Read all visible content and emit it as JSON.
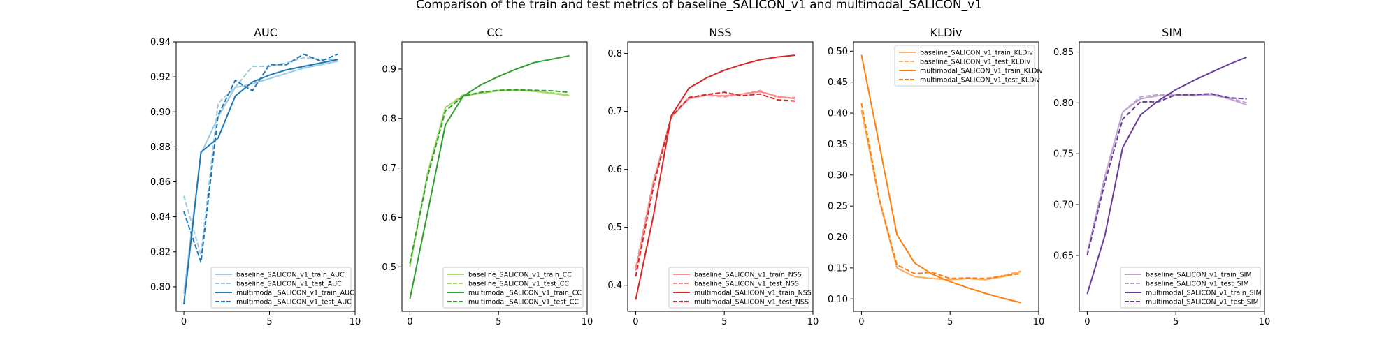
{
  "title": "Comparison of the train and test metrics of baseline_SALICON_v1 and multimodal_SALICON_v1",
  "chart_data": [
    {
      "type": "line",
      "title": "AUC",
      "xlim": [
        -0.45,
        10
      ],
      "ylim": [
        0.786,
        0.94
      ],
      "xticks": [
        0,
        5,
        10
      ],
      "yticks": [
        0.8,
        0.82,
        0.84,
        0.86,
        0.88,
        0.9,
        0.92,
        0.94
      ],
      "ytick_labels": [
        "0.80",
        "0.82",
        "0.84",
        "0.86",
        "0.88",
        "0.90",
        "0.92",
        "0.94"
      ],
      "legend_position": "lower right",
      "x": [
        0,
        1,
        2,
        3,
        4,
        5,
        6,
        7,
        8,
        9
      ],
      "series": [
        {
          "name": "baseline_SALICON_v1_train_AUC",
          "color": "#9ecae1",
          "dashed": false,
          "values": [
            0.796,
            0.876,
            0.897,
            0.914,
            0.916,
            0.919,
            0.922,
            0.925,
            0.927,
            0.929
          ]
        },
        {
          "name": "baseline_SALICON_v1_test_AUC",
          "color": "#9ecae1",
          "dashed": true,
          "values": [
            0.852,
            0.818,
            0.905,
            0.914,
            0.926,
            0.926,
            0.928,
            0.931,
            0.93,
            0.93
          ]
        },
        {
          "name": "multimodal_SALICON_v1_train_AUC",
          "color": "#1f77b4",
          "dashed": false,
          "values": [
            0.79,
            0.877,
            0.885,
            0.909,
            0.917,
            0.921,
            0.924,
            0.926,
            0.928,
            0.93
          ]
        },
        {
          "name": "multimodal_SALICON_v1_test_AUC",
          "color": "#1f77b4",
          "dashed": true,
          "values": [
            0.843,
            0.814,
            0.898,
            0.918,
            0.912,
            0.927,
            0.927,
            0.933,
            0.929,
            0.933
          ]
        }
      ]
    },
    {
      "type": "line",
      "title": "CC",
      "xlim": [
        -0.45,
        10
      ],
      "ylim": [
        0.41,
        0.955
      ],
      "xticks": [
        0,
        5,
        10
      ],
      "yticks": [
        0.5,
        0.6,
        0.7,
        0.8,
        0.9
      ],
      "ytick_labels": [
        "0.5",
        "0.6",
        "0.7",
        "0.8",
        "0.9"
      ],
      "legend_position": "lower right",
      "x": [
        0,
        1,
        2,
        3,
        4,
        5,
        6,
        7,
        8,
        9
      ],
      "series": [
        {
          "name": "baseline_SALICON_v1_train_CC",
          "color": "#a6d96a",
          "dashed": false,
          "values": [
            0.5,
            0.69,
            0.822,
            0.845,
            0.851,
            0.856,
            0.857,
            0.855,
            0.851,
            0.846
          ]
        },
        {
          "name": "baseline_SALICON_v1_test_CC",
          "color": "#a6d96a",
          "dashed": true,
          "values": [
            0.5,
            0.69,
            0.822,
            0.848,
            0.852,
            0.857,
            0.858,
            0.856,
            0.852,
            0.848
          ]
        },
        {
          "name": "multimodal_SALICON_v1_train_CC",
          "color": "#2ca02c",
          "dashed": false,
          "values": [
            0.435,
            0.61,
            0.787,
            0.845,
            0.868,
            0.885,
            0.9,
            0.913,
            0.92,
            0.927
          ]
        },
        {
          "name": "multimodal_SALICON_v1_test_CC",
          "color": "#2ca02c",
          "dashed": true,
          "values": [
            0.507,
            0.683,
            0.815,
            0.845,
            0.853,
            0.857,
            0.858,
            0.857,
            0.856,
            0.853
          ]
        }
      ]
    },
    {
      "type": "line",
      "title": "NSS",
      "xlim": [
        -0.45,
        10
      ],
      "ylim": [
        0.355,
        0.82
      ],
      "xticks": [
        0,
        5,
        10
      ],
      "yticks": [
        0.4,
        0.5,
        0.6,
        0.7,
        0.8
      ],
      "ytick_labels": [
        "0.4",
        "0.5",
        "0.6",
        "0.7",
        "0.8"
      ],
      "legend_position": "lower right",
      "x": [
        0,
        1,
        2,
        3,
        4,
        5,
        6,
        7,
        8,
        9
      ],
      "series": [
        {
          "name": "baseline_SALICON_v1_train_NSS",
          "color": "#fc8d8d",
          "dashed": false,
          "values": [
            0.425,
            0.578,
            0.69,
            0.722,
            0.728,
            0.727,
            0.73,
            0.734,
            0.726,
            0.722
          ]
        },
        {
          "name": "baseline_SALICON_v1_test_NSS",
          "color": "#fc8d8d",
          "dashed": true,
          "values": [
            0.43,
            0.58,
            0.69,
            0.724,
            0.728,
            0.725,
            0.73,
            0.736,
            0.724,
            0.724
          ]
        },
        {
          "name": "multimodal_SALICON_v1_train_NSS",
          "color": "#d62728",
          "dashed": false,
          "values": [
            0.375,
            0.52,
            0.692,
            0.74,
            0.758,
            0.771,
            0.781,
            0.789,
            0.794,
            0.797
          ]
        },
        {
          "name": "multimodal_SALICON_v1_test_NSS",
          "color": "#d62728",
          "dashed": true,
          "values": [
            0.415,
            0.57,
            0.69,
            0.724,
            0.729,
            0.733,
            0.727,
            0.73,
            0.72,
            0.718
          ]
        }
      ]
    },
    {
      "type": "line",
      "title": "KLDiv",
      "xlim": [
        -0.45,
        10
      ],
      "ylim": [
        0.08,
        0.515
      ],
      "xticks": [
        0,
        5,
        10
      ],
      "yticks": [
        0.1,
        0.15,
        0.2,
        0.25,
        0.3,
        0.35,
        0.4,
        0.45,
        0.5
      ],
      "ytick_labels": [
        "0.10",
        "0.15",
        "0.20",
        "0.25",
        "0.30",
        "0.35",
        "0.40",
        "0.45",
        "0.50"
      ],
      "legend_position": "upper right",
      "x": [
        0,
        1,
        2,
        3,
        4,
        5,
        6,
        7,
        8,
        9
      ],
      "series": [
        {
          "name": "baseline_SALICON_v1_train_KLDiv",
          "color": "#fdae61",
          "dashed": false,
          "values": [
            0.405,
            0.26,
            0.15,
            0.136,
            0.133,
            0.131,
            0.133,
            0.131,
            0.136,
            0.144
          ]
        },
        {
          "name": "baseline_SALICON_v1_test_KLDiv",
          "color": "#fdae61",
          "dashed": true,
          "values": [
            0.405,
            0.26,
            0.15,
            0.136,
            0.133,
            0.131,
            0.133,
            0.131,
            0.138,
            0.145
          ]
        },
        {
          "name": "multimodal_SALICON_v1_train_KLDiv",
          "color": "#ff7f0e",
          "dashed": false,
          "values": [
            0.494,
            0.35,
            0.204,
            0.158,
            0.14,
            0.128,
            0.118,
            0.109,
            0.101,
            0.094
          ]
        },
        {
          "name": "multimodal_SALICON_v1_test_KLDiv",
          "color": "#ff7f0e",
          "dashed": true,
          "values": [
            0.416,
            0.262,
            0.155,
            0.141,
            0.143,
            0.133,
            0.134,
            0.133,
            0.137,
            0.141
          ]
        }
      ]
    },
    {
      "type": "line",
      "title": "SIM",
      "xlim": [
        -0.45,
        10
      ],
      "ylim": [
        0.595,
        0.86
      ],
      "xticks": [
        0,
        5,
        10
      ],
      "yticks": [
        0.65,
        0.7,
        0.75,
        0.8,
        0.85
      ],
      "ytick_labels": [
        "0.65",
        "0.70",
        "0.75",
        "0.80",
        "0.85"
      ],
      "legend_position": "lower right",
      "x": [
        0,
        1,
        2,
        3,
        4,
        5,
        6,
        7,
        8,
        9
      ],
      "series": [
        {
          "name": "baseline_SALICON_v1_train_SIM",
          "color": "#c2a5cf",
          "dashed": false,
          "values": [
            0.652,
            0.728,
            0.791,
            0.804,
            0.807,
            0.808,
            0.807,
            0.808,
            0.804,
            0.798
          ]
        },
        {
          "name": "baseline_SALICON_v1_test_SIM",
          "color": "#c2a5cf",
          "dashed": true,
          "values": [
            0.652,
            0.728,
            0.791,
            0.806,
            0.808,
            0.808,
            0.808,
            0.809,
            0.805,
            0.8
          ]
        },
        {
          "name": "multimodal_SALICON_v1_train_SIM",
          "color": "#6a3d9a",
          "dashed": false,
          "values": [
            0.612,
            0.67,
            0.756,
            0.788,
            0.802,
            0.813,
            0.822,
            0.83,
            0.838,
            0.845
          ]
        },
        {
          "name": "multimodal_SALICON_v1_test_SIM",
          "color": "#6a3d9a",
          "dashed": true,
          "values": [
            0.65,
            0.722,
            0.784,
            0.801,
            0.801,
            0.808,
            0.808,
            0.809,
            0.805,
            0.804
          ]
        }
      ]
    }
  ]
}
